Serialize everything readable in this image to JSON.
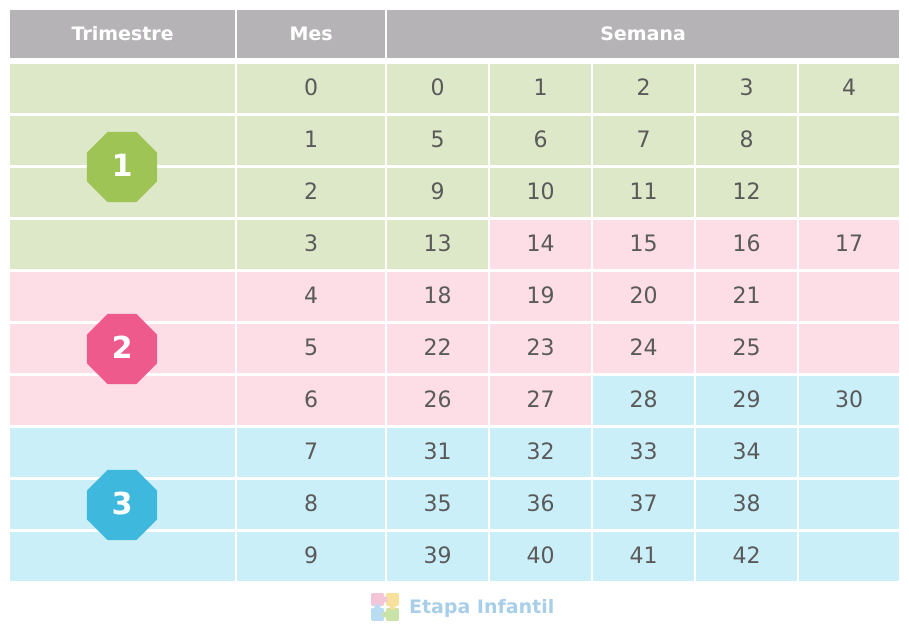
{
  "header": {
    "trimestre": "Trimestre",
    "mes": "Mes",
    "semana": "Semana"
  },
  "rows": [
    {
      "mes": "0",
      "weeks": [
        "0",
        "1",
        "2",
        "3",
        "4"
      ],
      "row_trim": 1,
      "cell_trims": [
        1,
        1,
        1,
        1,
        1
      ]
    },
    {
      "mes": "1",
      "weeks": [
        "5",
        "6",
        "7",
        "8",
        ""
      ],
      "row_trim": 1,
      "cell_trims": [
        1,
        1,
        1,
        1,
        1
      ]
    },
    {
      "mes": "2",
      "weeks": [
        "9",
        "10",
        "11",
        "12",
        ""
      ],
      "row_trim": 1,
      "cell_trims": [
        1,
        1,
        1,
        1,
        1
      ]
    },
    {
      "mes": "3",
      "weeks": [
        "13",
        "14",
        "15",
        "16",
        "17"
      ],
      "row_trim": 1,
      "cell_trims": [
        1,
        2,
        2,
        2,
        2
      ]
    },
    {
      "mes": "4",
      "weeks": [
        "18",
        "19",
        "20",
        "21",
        ""
      ],
      "row_trim": 2,
      "cell_trims": [
        2,
        2,
        2,
        2,
        2
      ]
    },
    {
      "mes": "5",
      "weeks": [
        "22",
        "23",
        "24",
        "25",
        ""
      ],
      "row_trim": 2,
      "cell_trims": [
        2,
        2,
        2,
        2,
        2
      ]
    },
    {
      "mes": "6",
      "weeks": [
        "26",
        "27",
        "28",
        "29",
        "30"
      ],
      "row_trim": 2,
      "cell_trims": [
        2,
        2,
        3,
        3,
        3
      ]
    },
    {
      "mes": "7",
      "weeks": [
        "31",
        "32",
        "33",
        "34",
        ""
      ],
      "row_trim": 3,
      "cell_trims": [
        3,
        3,
        3,
        3,
        3
      ]
    },
    {
      "mes": "8",
      "weeks": [
        "35",
        "36",
        "37",
        "38",
        ""
      ],
      "row_trim": 3,
      "cell_trims": [
        3,
        3,
        3,
        3,
        3
      ]
    },
    {
      "mes": "9",
      "weeks": [
        "39",
        "40",
        "41",
        "42",
        ""
      ],
      "row_trim": 3,
      "cell_trims": [
        3,
        3,
        3,
        3,
        3
      ]
    }
  ],
  "trimesters": [
    {
      "label": "1",
      "badge_color": "#9dc454",
      "first_row": 0,
      "last_row": 3
    },
    {
      "label": "2",
      "badge_color": "#ef5a8c",
      "first_row": 4,
      "last_row": 6
    },
    {
      "label": "3",
      "badge_color": "#3fb8de",
      "first_row": 7,
      "last_row": 9
    }
  ],
  "colors": {
    "trim1": "#dde8c8",
    "trim2": "#fddde6",
    "trim3": "#cbeff8",
    "header": "#b5b3b5"
  },
  "footer": {
    "brand": "Etapa Infantil",
    "logo_icon": "puzzle-logo"
  }
}
